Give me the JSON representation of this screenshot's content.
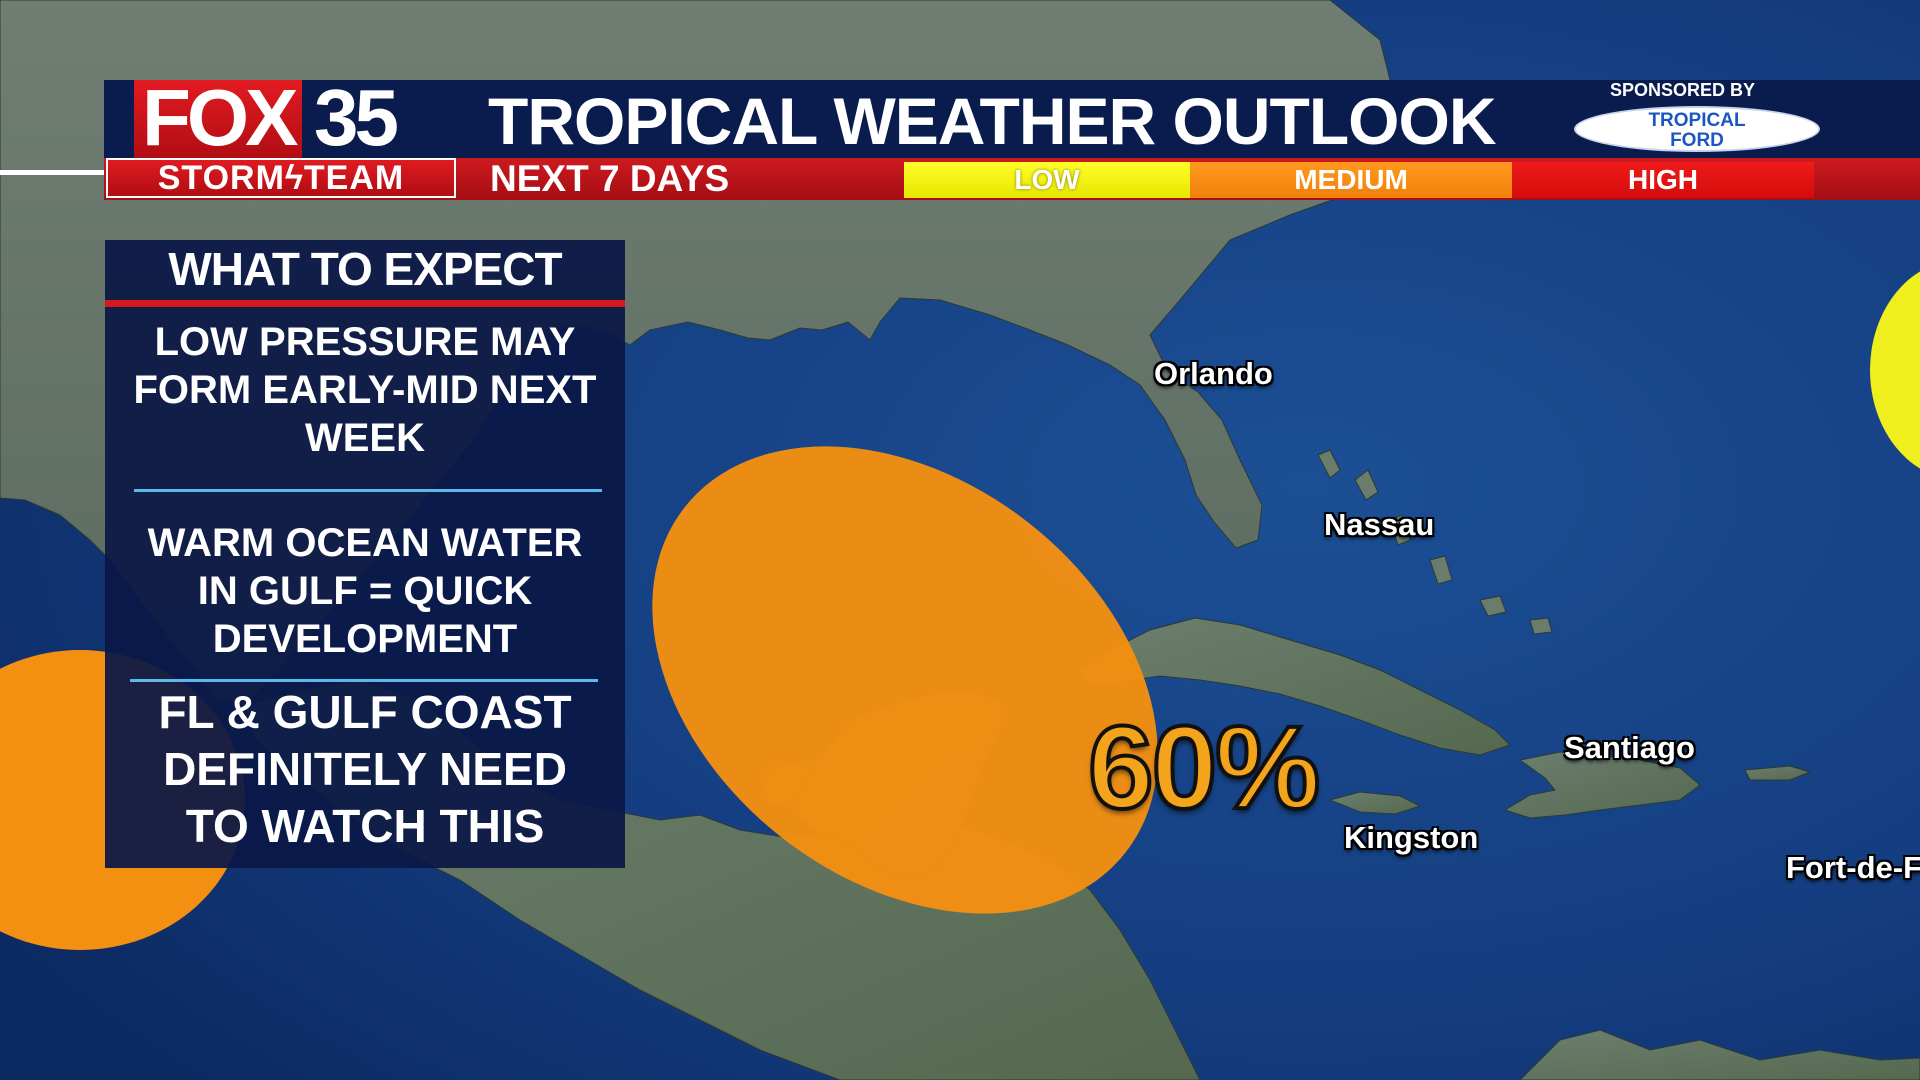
{
  "header": {
    "title": "TROPICAL WEATHER OUTLOOK",
    "subtitle": "NEXT 7 DAYS",
    "logo_fox": "FOX",
    "logo_number": "35",
    "logo_team": "STORM",
    "logo_team2": "TEAM",
    "sponsor_label": "SPONSORED BY",
    "sponsor_name_line1": "TROPICAL",
    "sponsor_name_line2": "FORD"
  },
  "legend": {
    "low": "LOW",
    "medium": "MEDIUM",
    "high": "HIGH",
    "colors": {
      "low": "#f0f000",
      "medium": "#f59012",
      "high": "#e01414"
    }
  },
  "panel": {
    "heading": "WHAT TO EXPECT",
    "item1": "LOW PRESSURE MAY\nFORM EARLY-MID NEXT\nWEEK",
    "item2": "WARM OCEAN WATER\nIN GULF = QUICK\nDEVELOPMENT",
    "item3": "FL & GULF COAST\nDEFINITELY NEED\nTO WATCH THIS"
  },
  "map": {
    "cities": [
      "Orlando",
      "Nassau",
      "Santiago",
      "Kingston",
      "Fort-de-F"
    ],
    "outlook_area_percent": "60%",
    "outlook_area_level": "medium"
  }
}
